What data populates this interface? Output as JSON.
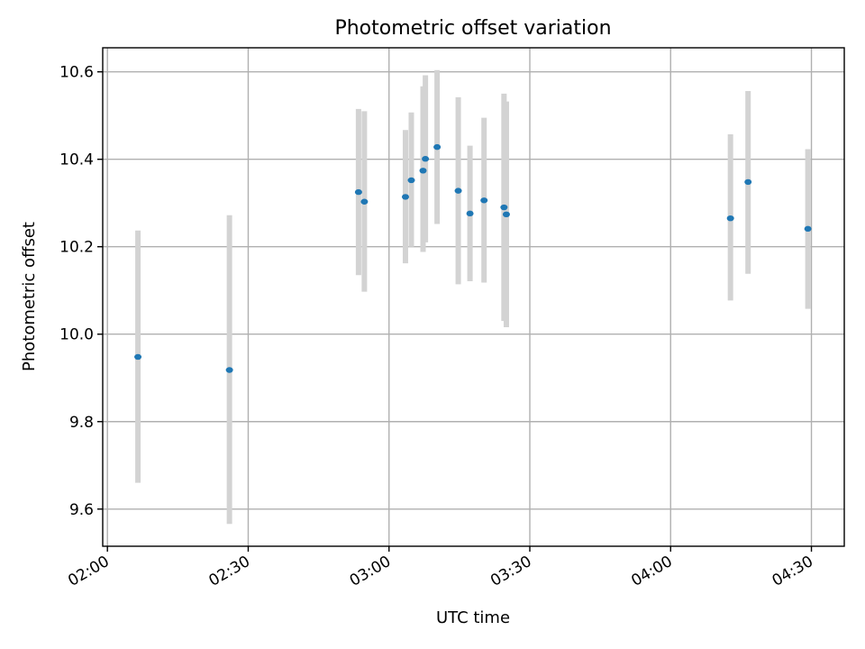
{
  "chart_data": {
    "type": "scatter",
    "title": "Photometric offset variation",
    "xlabel": "UTC time",
    "ylabel": "Photometric offset",
    "grid": true,
    "xlim": [
      "01:59",
      "04:37"
    ],
    "ylim": [
      9.515,
      10.655
    ],
    "x_ticks": [
      "02:00",
      "02:30",
      "03:00",
      "03:30",
      "04:00",
      "04:30"
    ],
    "y_ticks": [
      "9.6",
      "9.8",
      "10.0",
      "10.2",
      "10.4",
      "10.6"
    ],
    "colors": {
      "marker": "#1f77b4",
      "errorbar": "#d3d3d3"
    },
    "points": [
      {
        "x": "02:06:30",
        "y": 9.948,
        "ylow": 9.66,
        "yhigh": 10.237
      },
      {
        "x": "02:26:00",
        "y": 9.918,
        "ylow": 9.566,
        "yhigh": 10.272
      },
      {
        "x": "02:53:30",
        "y": 10.325,
        "ylow": 10.135,
        "yhigh": 10.515
      },
      {
        "x": "02:54:45",
        "y": 10.303,
        "ylow": 10.097,
        "yhigh": 10.51
      },
      {
        "x": "03:03:30",
        "y": 10.314,
        "ylow": 10.162,
        "yhigh": 10.467
      },
      {
        "x": "03:04:45",
        "y": 10.352,
        "ylow": 10.2,
        "yhigh": 10.507
      },
      {
        "x": "03:07:15",
        "y": 10.374,
        "ylow": 10.188,
        "yhigh": 10.567
      },
      {
        "x": "03:07:45",
        "y": 10.401,
        "ylow": 10.21,
        "yhigh": 10.592
      },
      {
        "x": "03:10:15",
        "y": 10.428,
        "ylow": 10.252,
        "yhigh": 10.604
      },
      {
        "x": "03:14:45",
        "y": 10.328,
        "ylow": 10.114,
        "yhigh": 10.542
      },
      {
        "x": "03:17:15",
        "y": 10.276,
        "ylow": 10.121,
        "yhigh": 10.431
      },
      {
        "x": "03:20:15",
        "y": 10.306,
        "ylow": 10.118,
        "yhigh": 10.495
      },
      {
        "x": "03:24:30",
        "y": 10.29,
        "ylow": 10.03,
        "yhigh": 10.55
      },
      {
        "x": "03:25:00",
        "y": 10.274,
        "ylow": 10.016,
        "yhigh": 10.532
      },
      {
        "x": "04:12:45",
        "y": 10.265,
        "ylow": 10.077,
        "yhigh": 10.457
      },
      {
        "x": "04:16:30",
        "y": 10.348,
        "ylow": 10.138,
        "yhigh": 10.556
      },
      {
        "x": "04:29:15",
        "y": 10.241,
        "ylow": 10.058,
        "yhigh": 10.423
      }
    ]
  }
}
